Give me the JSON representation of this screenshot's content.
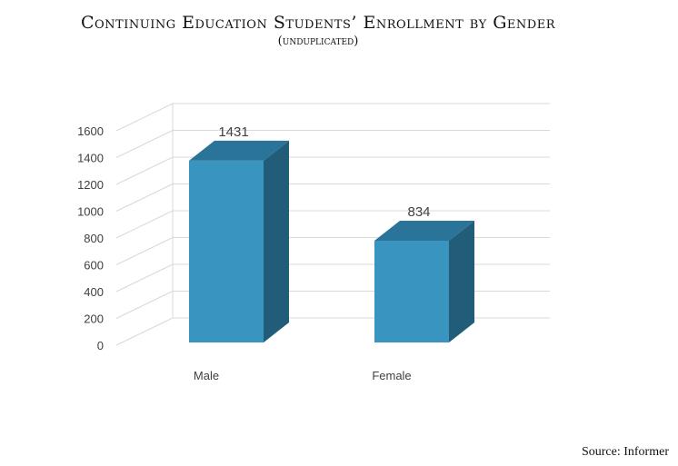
{
  "title": "Continuing Education Students’ Enrollment by Gender",
  "subtitle": "(unduplicated)",
  "source": "Source: Informer",
  "colors": {
    "bar_front": "#3a94c0",
    "bar_side": "#215d79",
    "bar_top": "#2b7499",
    "grid": "#d9d9d9",
    "text": "#404040"
  },
  "chart_data": {
    "type": "bar",
    "categories": [
      "Male",
      "Female"
    ],
    "values": [
      1431,
      834
    ],
    "ylim": [
      0,
      1600
    ],
    "yticks": [
      0,
      200,
      400,
      600,
      800,
      1000,
      1200,
      1400,
      1600
    ],
    "data_labels": [
      "1431",
      "834"
    ],
    "grid": true,
    "style": "3d-column"
  }
}
